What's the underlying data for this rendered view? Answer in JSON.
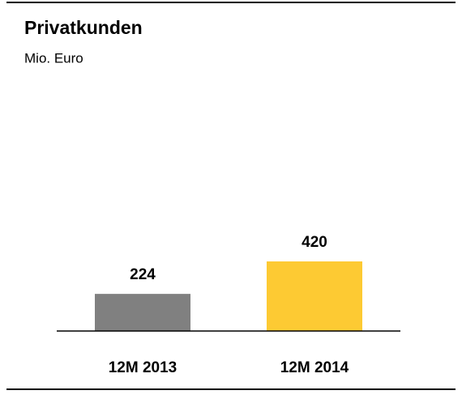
{
  "chart_data": {
    "type": "bar",
    "title": "Privatkunden",
    "subtitle": "Mio. Euro",
    "categories": [
      "12M 2013",
      "12M 2014"
    ],
    "values": [
      224,
      420
    ],
    "colors": [
      "#808080",
      "#fdca33"
    ]
  }
}
